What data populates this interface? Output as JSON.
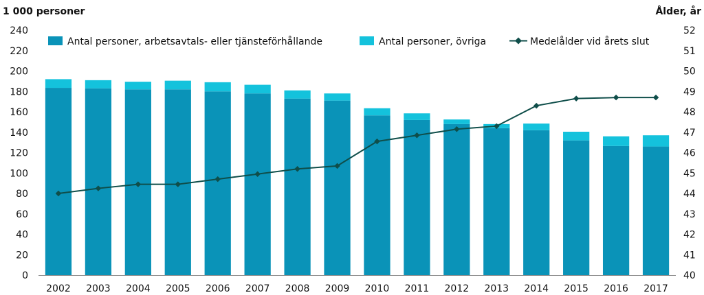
{
  "chart_data": {
    "type": "bar",
    "stacked": true,
    "categories": [
      "2002",
      "2003",
      "2004",
      "2005",
      "2006",
      "2007",
      "2008",
      "2009",
      "2010",
      "2011",
      "2012",
      "2013",
      "2014",
      "2015",
      "2016",
      "2017"
    ],
    "series": [
      {
        "name": "Antal personer, arbetsavtals- eller tjänsteförhållande",
        "type": "bar",
        "axis": "left",
        "color": "#0a93b8",
        "values": [
          183.5,
          183,
          182,
          182,
          180,
          178,
          173,
          171,
          156.5,
          152,
          148,
          144,
          142,
          132,
          126.5,
          126
        ]
      },
      {
        "name": "Antal personer, övriga",
        "type": "bar",
        "axis": "left",
        "color": "#14c2dc",
        "values": [
          8.5,
          8,
          7.5,
          8.5,
          9,
          8.5,
          8,
          7,
          7,
          6.5,
          4.5,
          4,
          6.5,
          8.5,
          9.5,
          11
        ]
      },
      {
        "name": "Medelålder vid årets slut",
        "type": "line",
        "axis": "right",
        "color": "#0f4e4a",
        "values": [
          44.0,
          44.25,
          44.45,
          44.45,
          44.7,
          44.95,
          45.2,
          45.35,
          46.55,
          46.85,
          47.15,
          47.3,
          48.3,
          48.65,
          48.7,
          48.7
        ]
      }
    ],
    "left_axis": {
      "label": "1 000 personer",
      "min": 0,
      "max": 240,
      "step": 20
    },
    "right_axis": {
      "label": "Ålder, år",
      "min": 40,
      "max": 52,
      "step": 1
    },
    "legend_position": "top",
    "grid": false
  }
}
